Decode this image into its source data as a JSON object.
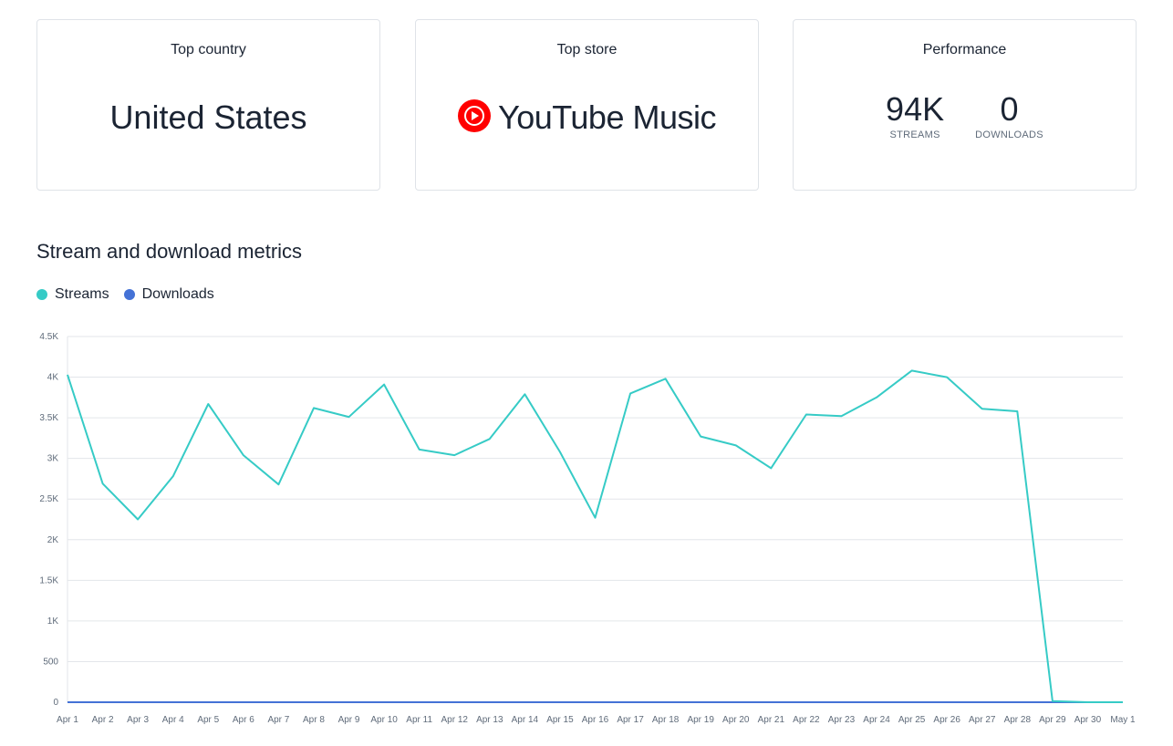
{
  "cards": {
    "top_country": {
      "title": "Top country",
      "value": "United States"
    },
    "top_store": {
      "title": "Top store",
      "value": "YouTube Music",
      "icon": "youtube-music-icon",
      "icon_color": "#ff0000"
    },
    "performance": {
      "title": "Performance",
      "streams_value": "94K",
      "streams_label": "STREAMS",
      "downloads_value": "0",
      "downloads_label": "DOWNLOADS"
    }
  },
  "section": {
    "title": "Stream and download metrics"
  },
  "legend": {
    "streams": {
      "label": "Streams",
      "color": "#36cbc6"
    },
    "downloads": {
      "label": "Downloads",
      "color": "#4472d6"
    }
  },
  "chart_data": {
    "type": "line",
    "x": [
      "Apr 1",
      "Apr 2",
      "Apr 3",
      "Apr 4",
      "Apr 5",
      "Apr 6",
      "Apr 7",
      "Apr 8",
      "Apr 9",
      "Apr 10",
      "Apr 11",
      "Apr 12",
      "Apr 13",
      "Apr 14",
      "Apr 15",
      "Apr 16",
      "Apr 17",
      "Apr 18",
      "Apr 19",
      "Apr 20",
      "Apr 21",
      "Apr 22",
      "Apr 23",
      "Apr 24",
      "Apr 25",
      "Apr 26",
      "Apr 27",
      "Apr 28",
      "Apr 29",
      "Apr 30",
      "May 1"
    ],
    "series": [
      {
        "name": "Streams",
        "color": "#36cbc6",
        "values": [
          4030,
          2690,
          2250,
          2780,
          3670,
          3040,
          2680,
          3620,
          3510,
          3910,
          3110,
          3040,
          3240,
          3790,
          3080,
          2270,
          3800,
          3980,
          3270,
          3160,
          2880,
          3540,
          3520,
          3750,
          4080,
          4000,
          3610,
          3580,
          15,
          0,
          0
        ]
      },
      {
        "name": "Downloads",
        "color": "#4472d6",
        "values": [
          0,
          0,
          0,
          0,
          0,
          0,
          0,
          0,
          0,
          0,
          0,
          0,
          0,
          0,
          0,
          0,
          0,
          0,
          0,
          0,
          0,
          0,
          0,
          0,
          0,
          0,
          0,
          0,
          0,
          0,
          0
        ]
      }
    ],
    "ylim": [
      0,
      4500
    ],
    "yticks": [
      0,
      500,
      1000,
      1500,
      2000,
      2500,
      3000,
      3500,
      4000,
      4500
    ],
    "ytick_labels": [
      "0",
      "500",
      "1K",
      "1.5K",
      "2K",
      "2.5K",
      "3K",
      "3.5K",
      "4K",
      "4.5K"
    ],
    "grid": true,
    "legend_position": "top-left"
  }
}
